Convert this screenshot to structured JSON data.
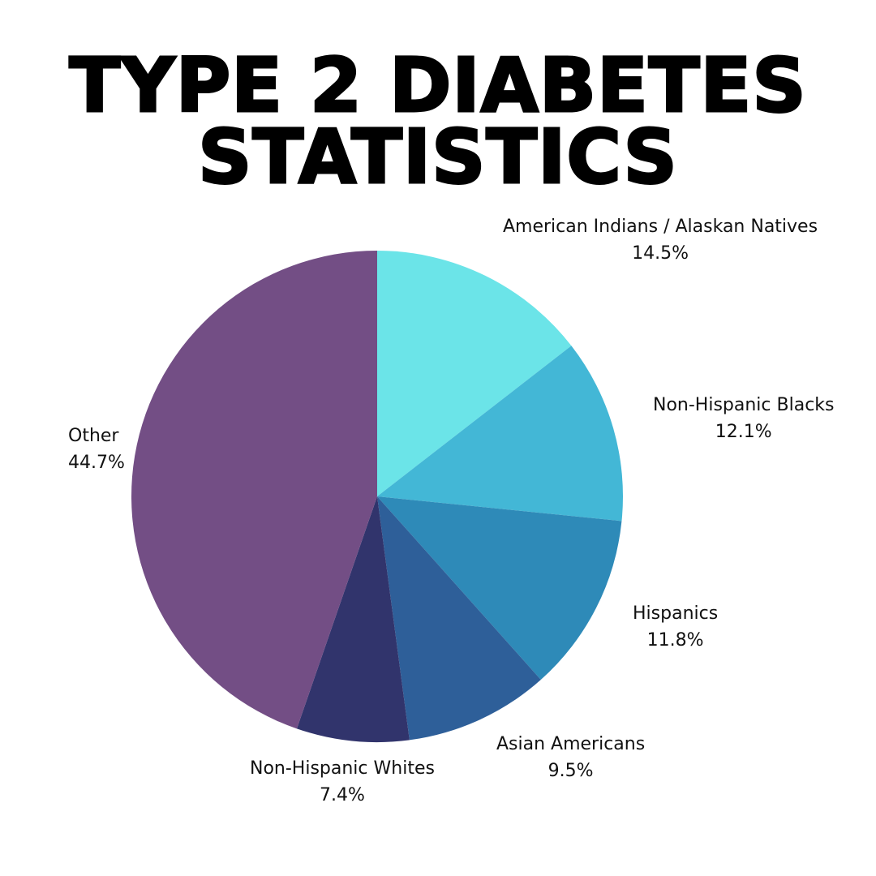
{
  "title_line1": "TYPE 2 DIABETES",
  "title_line2": "STATISTICS",
  "chart_data": {
    "type": "pie",
    "title": "TYPE 2 DIABETES STATISTICS",
    "categories": [
      "American Indians / Alaskan Natives",
      "Non-Hispanic Blacks",
      "Hispanics",
      "Asian Americans",
      "Non-Hispanic Whites",
      "Other"
    ],
    "values": [
      14.5,
      12.1,
      11.8,
      9.5,
      7.4,
      44.7
    ],
    "colors": [
      "#6BE4E8",
      "#43B7D6",
      "#2E8AB8",
      "#2E5F99",
      "#31346C",
      "#734E85"
    ],
    "start_angle": "12 o'clock, clockwise",
    "legend": "none (direct labels)"
  },
  "labels": [
    {
      "name": "American Indians / Alaskan Natives",
      "pct": "14.5%"
    },
    {
      "name": "Non-Hispanic Blacks",
      "pct": "12.1%"
    },
    {
      "name": "Hispanics",
      "pct": "11.8%"
    },
    {
      "name": "Asian Americans",
      "pct": "9.5%"
    },
    {
      "name": "Non-Hispanic Whites",
      "pct": "7.4%"
    },
    {
      "name": "Other",
      "pct": "44.7%"
    }
  ]
}
